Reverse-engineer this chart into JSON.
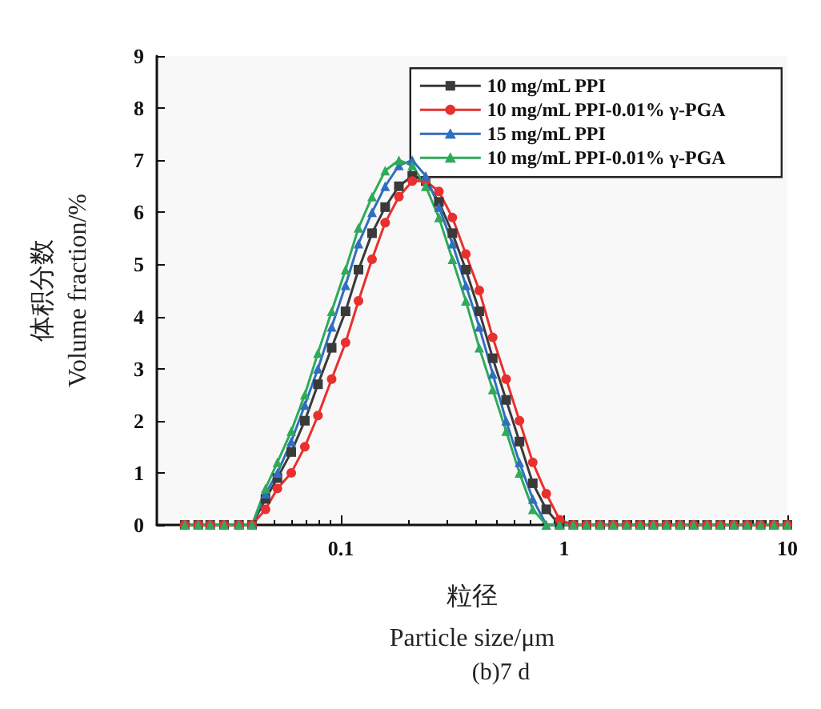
{
  "chart_data": {
    "type": "line",
    "xlabel": "粒径\nParticle size/μm",
    "ylabel": "体积分数\nVolume fraction/%",
    "annotations": [
      "(b)7 d"
    ],
    "log": "x",
    "x": [
      0.02,
      0.023,
      0.026,
      0.03,
      0.035,
      0.04,
      0.046,
      0.052,
      0.06,
      0.069,
      0.079,
      0.091,
      0.105,
      0.12,
      0.138,
      0.158,
      0.182,
      0.209,
      0.24,
      0.275,
      0.316,
      0.363,
      0.417,
      0.479,
      0.55,
      0.631,
      0.724,
      0.832,
      0.955,
      1.1,
      1.26,
      1.45,
      1.66,
      1.91,
      2.19,
      2.51,
      2.88,
      3.31,
      3.8,
      4.37,
      5.01,
      5.75,
      6.61,
      7.59,
      8.71,
      10.0
    ],
    "xlim": [
      0.015,
      10
    ],
    "xticks": [
      0.1,
      1,
      10
    ],
    "ylim": [
      0,
      9
    ],
    "yticks": [
      0,
      1,
      2,
      3,
      4,
      5,
      6,
      7,
      8,
      9
    ],
    "grid": false,
    "legend": "top right",
    "series": [
      {
        "name": "10 mg/mL PPI",
        "color": "#3a3a3a",
        "marker": "square",
        "values": [
          0,
          0,
          0,
          0,
          0,
          0,
          0.5,
          0.9,
          1.4,
          2.0,
          2.7,
          3.4,
          4.1,
          4.9,
          5.6,
          6.1,
          6.5,
          6.7,
          6.6,
          6.2,
          5.6,
          4.9,
          4.1,
          3.2,
          2.4,
          1.6,
          0.8,
          0.3,
          0,
          0,
          0,
          0,
          0,
          0,
          0,
          0,
          0,
          0,
          0,
          0,
          0,
          0,
          0,
          0,
          0,
          0
        ]
      },
      {
        "name": "10 mg/mL PPI-0.01% γ-PGA",
        "color": "#e8302e",
        "marker": "circle",
        "values": [
          0,
          0,
          0,
          0,
          0,
          0,
          0.3,
          0.7,
          1.0,
          1.5,
          2.1,
          2.8,
          3.5,
          4.3,
          5.1,
          5.8,
          6.3,
          6.6,
          6.6,
          6.4,
          5.9,
          5.2,
          4.5,
          3.6,
          2.8,
          2.0,
          1.2,
          0.6,
          0.1,
          0,
          0,
          0,
          0,
          0,
          0,
          0,
          0,
          0,
          0,
          0,
          0,
          0,
          0,
          0,
          0,
          0
        ]
      },
      {
        "name": "15 mg/mL PPI",
        "color": "#2f6ec0",
        "marker": "triangle",
        "values": [
          null,
          null,
          null,
          null,
          0,
          0,
          0.6,
          1.0,
          1.6,
          2.3,
          3.0,
          3.8,
          4.6,
          5.4,
          6.0,
          6.5,
          6.9,
          7.0,
          6.7,
          6.1,
          5.4,
          4.6,
          3.8,
          2.9,
          2.0,
          1.2,
          0.5,
          0,
          0,
          null,
          null,
          null,
          null,
          null,
          null,
          null,
          null,
          null,
          null,
          null,
          null,
          null,
          null,
          null,
          null,
          null
        ]
      },
      {
        "name": "10 mg/mL PPI-0.01% γ-PGA",
        "color": "#2eaa5a",
        "marker": "triangle",
        "values": [
          0,
          0,
          0,
          0,
          0,
          0,
          0.7,
          1.2,
          1.8,
          2.5,
          3.3,
          4.1,
          4.9,
          5.7,
          6.3,
          6.8,
          7.0,
          6.9,
          6.5,
          5.9,
          5.1,
          4.3,
          3.4,
          2.6,
          1.8,
          1.0,
          0.3,
          0,
          0,
          0,
          0,
          0,
          0,
          0,
          0,
          0,
          0,
          0,
          0,
          0,
          0,
          0,
          0,
          0,
          0,
          0
        ]
      }
    ]
  }
}
